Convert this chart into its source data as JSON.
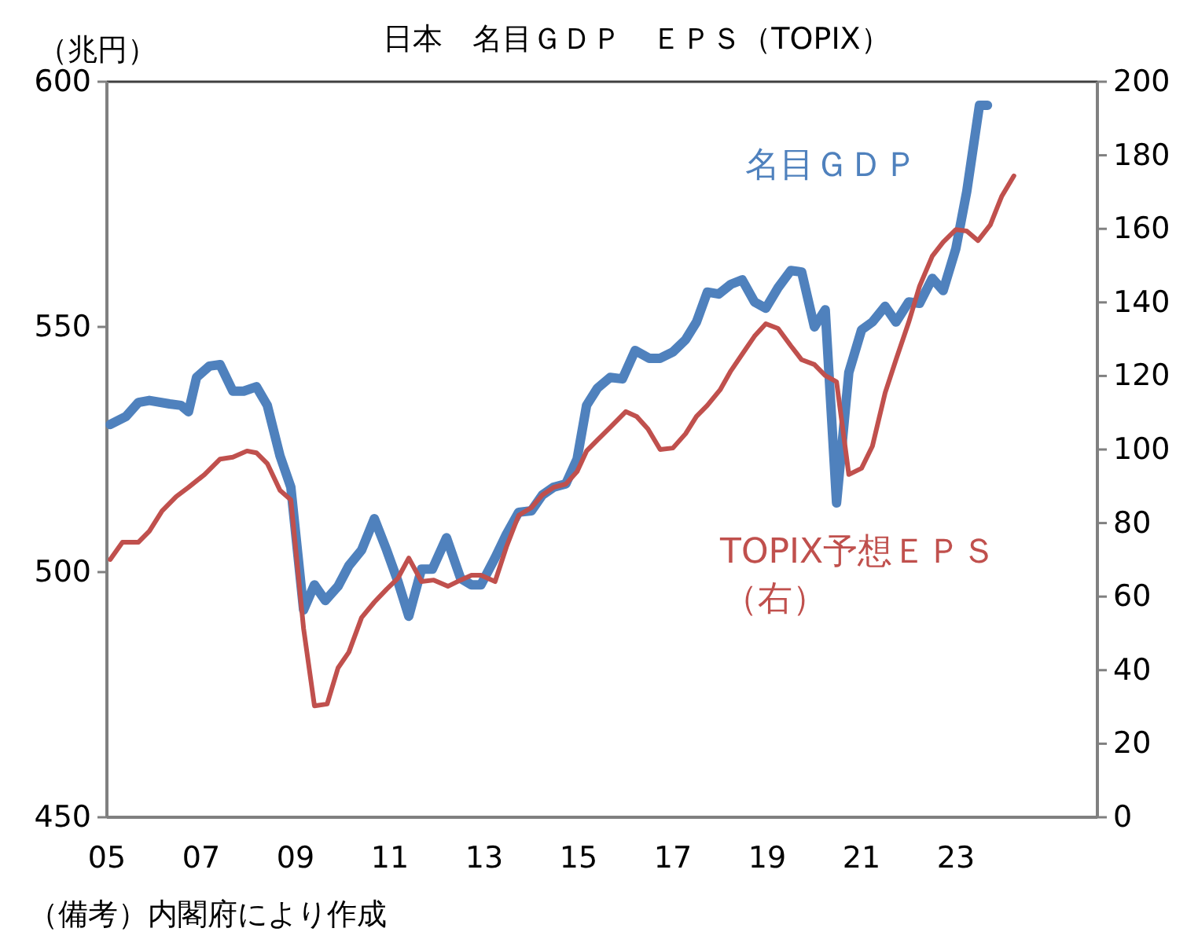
{
  "chart_data": {
    "type": "line",
    "title": "日本　名目ＧＤＰ　ＥＰＳ（TOPIX）",
    "ylabel": "（兆円）",
    "annotations": [
      "（備考）内閣府により作成"
    ],
    "xlim": [
      2005,
      2026
    ],
    "xticks": [
      {
        "value": 2005,
        "label": "05"
      },
      {
        "value": 2007,
        "label": "07"
      },
      {
        "value": 2009,
        "label": "09"
      },
      {
        "value": 2011,
        "label": "11"
      },
      {
        "value": 2013,
        "label": "13"
      },
      {
        "value": 2015,
        "label": "15"
      },
      {
        "value": 2017,
        "label": "17"
      },
      {
        "value": 2019,
        "label": "19"
      },
      {
        "value": 2021,
        "label": "21"
      },
      {
        "value": 2023,
        "label": "23"
      }
    ],
    "ylim": [
      450,
      600
    ],
    "yticks": [
      450,
      500,
      550,
      600
    ],
    "y2lim": [
      0,
      200
    ],
    "y2ticks": [
      0,
      20,
      40,
      60,
      80,
      100,
      120,
      140,
      160,
      180,
      200
    ],
    "series": [
      {
        "name": "名目ＧＤＰ",
        "color": "#4f81bd",
        "x": [
          2005.07,
          2005.4,
          2005.67,
          2005.9,
          2006.33,
          2006.57,
          2006.73,
          2006.9,
          2007.17,
          2007.4,
          2007.67,
          2007.9,
          2008.17,
          2008.4,
          2008.67,
          2008.9,
          2009.17,
          2009.4,
          2009.63,
          2009.9,
          2010.13,
          2010.4,
          2010.67,
          2010.93,
          2011.17,
          2011.4,
          2011.67,
          2011.9,
          2012.2,
          2012.5,
          2012.73,
          2012.93,
          2013.23,
          2013.47,
          2013.73,
          2014,
          2014.23,
          2014.47,
          2014.73,
          2014.97,
          2015.17,
          2015.4,
          2015.67,
          2015.93,
          2016.2,
          2016.5,
          2016.73,
          2017,
          2017.27,
          2017.5,
          2017.73,
          2017.97,
          2018.23,
          2018.47,
          2018.73,
          2018.97,
          2019.23,
          2019.5,
          2019.73,
          2020,
          2020.23,
          2020.47,
          2020.73,
          2021,
          2021.23,
          2021.5,
          2021.73,
          2022,
          2022.23,
          2022.5,
          2022.73,
          2023,
          2023.23,
          2023.5,
          2023.67
        ],
        "values": [
          530.1,
          531.7,
          534.6,
          535,
          534.3,
          534,
          532.7,
          539.7,
          542,
          542.3,
          536.9,
          536.9,
          537.8,
          534,
          523.7,
          517.3,
          492.3,
          497.4,
          494.2,
          497.1,
          501.3,
          504.5,
          510.9,
          504.5,
          498.1,
          491,
          500.6,
          500.6,
          507,
          498.7,
          497.4,
          497.4,
          502.9,
          507.7,
          512.2,
          512.5,
          515.7,
          517.3,
          518,
          523.1,
          534,
          537.5,
          539.7,
          539.4,
          545.2,
          543.6,
          543.6,
          544.9,
          547.4,
          551,
          557.1,
          556.7,
          558.7,
          559.6,
          555.1,
          553.8,
          558,
          561.5,
          561.2,
          550,
          553.5,
          514.1,
          540.7,
          549.4,
          551,
          554.2,
          551,
          555.1,
          554.8,
          559.9,
          557.4,
          566,
          577.6,
          595.2,
          595.2
        ]
      },
      {
        "name": "TOPIX予想ＥＰＳ（右）",
        "color": "#c0504d",
        "axis": "y2",
        "x": [
          2005.07,
          2005.33,
          2005.67,
          2005.9,
          2006.17,
          2006.47,
          2006.73,
          2007.07,
          2007.4,
          2007.67,
          2007.97,
          2008.17,
          2008.4,
          2008.67,
          2008.9,
          2009.17,
          2009.4,
          2009.67,
          2009.9,
          2010.13,
          2010.4,
          2010.67,
          2010.93,
          2011.17,
          2011.4,
          2011.67,
          2011.93,
          2012.23,
          2012.5,
          2012.73,
          2012.93,
          2013.23,
          2013.47,
          2013.73,
          2014,
          2014.23,
          2014.47,
          2014.73,
          2014.97,
          2015.17,
          2015.4,
          2015.67,
          2016,
          2016.23,
          2016.47,
          2016.73,
          2017,
          2017.27,
          2017.5,
          2017.73,
          2018,
          2018.23,
          2018.5,
          2018.73,
          2018.97,
          2019.23,
          2019.5,
          2019.73,
          2020,
          2020.23,
          2020.47,
          2020.73,
          2021,
          2021.23,
          2021.5,
          2021.73,
          2022,
          2022.23,
          2022.5,
          2022.73,
          2023,
          2023.23,
          2023.47,
          2023.73,
          2023.97,
          2024.23
        ],
        "values": [
          70.1,
          74.8,
          74.8,
          77.8,
          83.3,
          87.2,
          89.7,
          93.2,
          97.4,
          97.9,
          99.6,
          99.1,
          96.2,
          88.9,
          86.3,
          51.3,
          30.3,
          30.8,
          40.6,
          44.9,
          54.3,
          58.5,
          62,
          65,
          70.5,
          64.1,
          64.5,
          62.8,
          64.5,
          65.8,
          65.8,
          64.1,
          73.5,
          82.1,
          84.2,
          87.6,
          89.7,
          90.6,
          94,
          99.6,
          102.6,
          106,
          110.3,
          109,
          105.6,
          100,
          100.4,
          104.3,
          109,
          112,
          116.2,
          121.4,
          126.5,
          130.8,
          134.2,
          132.9,
          128.2,
          124.4,
          123.1,
          120.1,
          118.4,
          93.2,
          94.9,
          100.9,
          115.4,
          124.4,
          134.6,
          144.4,
          152.6,
          156.4,
          159.8,
          159.4,
          156.8,
          161.1,
          168.8,
          174.4
        ]
      }
    ]
  }
}
